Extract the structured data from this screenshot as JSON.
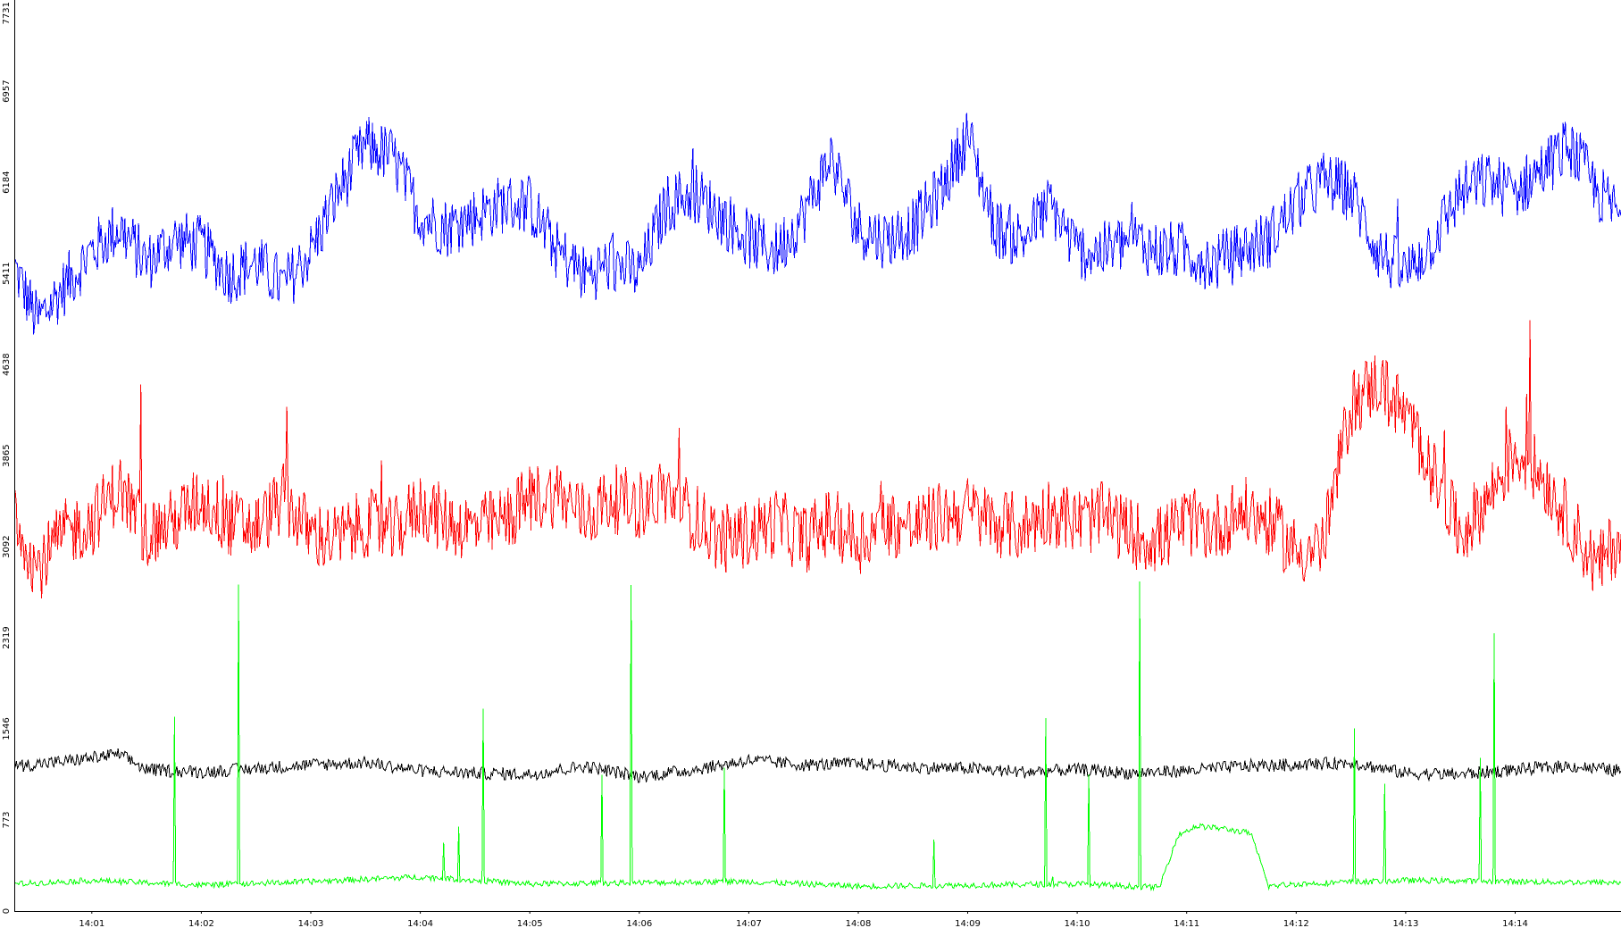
{
  "chart_data": {
    "type": "line",
    "title": "",
    "xlabel": "",
    "ylabel": "",
    "ylim": [
      0,
      7731
    ],
    "xlim": [
      "14:00:18",
      "14:14:58"
    ],
    "grid": false,
    "legend": "none",
    "y_ticks": [
      "0",
      "773",
      "1546",
      "2319",
      "3092",
      "3865",
      "4638",
      "5411",
      "6184",
      "6957",
      "7731"
    ],
    "x_ticks": [
      "14:01",
      "14:02",
      "14:03",
      "14:04",
      "14:05",
      "14:06",
      "14:07",
      "14:08",
      "14:09",
      "14:10",
      "14:11",
      "14:12",
      "14:13",
      "14:14"
    ],
    "series": [
      {
        "color": "#0000ff",
        "x": [
          "14:00:18",
          "14:00:30",
          "14:00:45",
          "14:01:00",
          "14:01:15",
          "14:01:30",
          "14:01:45",
          "14:02:00",
          "14:02:15",
          "14:02:30",
          "14:02:45",
          "14:03:00",
          "14:03:15",
          "14:03:30",
          "14:03:45",
          "14:04:00",
          "14:04:15",
          "14:04:30",
          "14:04:45",
          "14:05:00",
          "14:05:15",
          "14:05:30",
          "14:05:45",
          "14:06:00",
          "14:06:15",
          "14:06:30",
          "14:06:45",
          "14:07:00",
          "14:07:15",
          "14:07:30",
          "14:07:45",
          "14:08:00",
          "14:08:15",
          "14:08:30",
          "14:08:45",
          "14:09:00",
          "14:09:15",
          "14:09:30",
          "14:09:45",
          "14:10:00",
          "14:10:15",
          "14:10:30",
          "14:10:45",
          "14:11:00",
          "14:11:15",
          "14:11:30",
          "14:11:45",
          "14:12:00",
          "14:12:15",
          "14:12:30",
          "14:12:45",
          "14:13:00",
          "14:13:15",
          "14:13:30",
          "14:13:45",
          "14:14:00",
          "14:14:15",
          "14:14:30",
          "14:14:45",
          "14:14:58"
        ],
        "values": [
          5450,
          5000,
          5300,
          5600,
          5800,
          5500,
          5700,
          5650,
          5400,
          5500,
          5300,
          5600,
          6100,
          6500,
          6400,
          5900,
          5800,
          5900,
          6000,
          6000,
          5600,
          5400,
          5500,
          5400,
          6000,
          6100,
          5900,
          5700,
          5600,
          5900,
          6400,
          5800,
          5700,
          5800,
          6100,
          6600,
          5800,
          5700,
          6000,
          5600,
          5600,
          5700,
          5600,
          5600,
          5500,
          5600,
          5700,
          6000,
          6200,
          6100,
          5600,
          5400,
          5700,
          6100,
          6200,
          6100,
          6300,
          6500,
          6100,
          5900
        ]
      },
      {
        "color": "#ff0000",
        "x": [
          "14:00:18",
          "14:00:30",
          "14:00:45",
          "14:01:00",
          "14:01:15",
          "14:01:30",
          "14:01:45",
          "14:02:00",
          "14:02:15",
          "14:02:30",
          "14:02:45",
          "14:03:00",
          "14:03:15",
          "14:03:30",
          "14:03:45",
          "14:04:00",
          "14:04:15",
          "14:04:30",
          "14:04:45",
          "14:05:00",
          "14:05:15",
          "14:05:30",
          "14:05:45",
          "14:06:00",
          "14:06:15",
          "14:06:30",
          "14:06:45",
          "14:07:00",
          "14:07:15",
          "14:07:30",
          "14:07:45",
          "14:08:00",
          "14:08:15",
          "14:08:30",
          "14:08:45",
          "14:09:00",
          "14:09:15",
          "14:09:30",
          "14:09:45",
          "14:10:00",
          "14:10:15",
          "14:10:30",
          "14:10:45",
          "14:11:00",
          "14:11:15",
          "14:11:30",
          "14:11:45",
          "14:12:00",
          "14:12:15",
          "14:12:30",
          "14:12:45",
          "14:13:00",
          "14:13:15",
          "14:13:30",
          "14:13:45",
          "14:14:00",
          "14:14:15",
          "14:14:30",
          "14:14:45",
          "14:14:58"
        ],
        "values": [
          3400,
          2900,
          3200,
          3300,
          3600,
          3200,
          3300,
          3500,
          3300,
          3250,
          3500,
          3200,
          3150,
          3300,
          3200,
          3450,
          3300,
          3250,
          3300,
          3500,
          3550,
          3350,
          3500,
          3450,
          3550,
          3350,
          3150,
          3200,
          3300,
          3150,
          3300,
          3150,
          3300,
          3250,
          3350,
          3400,
          3300,
          3250,
          3400,
          3300,
          3350,
          3200,
          3150,
          3300,
          3250,
          3400,
          3300,
          3050,
          3100,
          4300,
          4500,
          4200,
          3700,
          3200,
          3500,
          3900,
          3700,
          3300,
          2900,
          3200
        ]
      },
      {
        "color": "#000000",
        "x": [
          "14:00:18",
          "14:00:45",
          "14:01:00",
          "14:01:15",
          "14:01:30",
          "14:02:00",
          "14:02:30",
          "14:03:00",
          "14:03:30",
          "14:04:00",
          "14:04:30",
          "14:05:00",
          "14:05:30",
          "14:06:00",
          "14:06:30",
          "14:07:00",
          "14:07:30",
          "14:08:00",
          "14:08:30",
          "14:09:00",
          "14:09:30",
          "14:10:00",
          "14:10:30",
          "14:11:00",
          "14:11:30",
          "14:12:00",
          "14:12:30",
          "14:13:00",
          "14:13:30",
          "14:14:00",
          "14:14:30",
          "14:14:58"
        ],
        "values": [
          1230,
          1270,
          1300,
          1330,
          1200,
          1180,
          1210,
          1240,
          1260,
          1190,
          1170,
          1160,
          1230,
          1140,
          1200,
          1280,
          1240,
          1250,
          1220,
          1210,
          1180,
          1200,
          1170,
          1190,
          1230,
          1240,
          1260,
          1170,
          1160,
          1200,
          1230,
          1190
        ]
      },
      {
        "color": "#00ff00",
        "x": [
          "14:00:18",
          "14:01:00",
          "14:02:00",
          "14:03:00",
          "14:04:00",
          "14:05:00",
          "14:06:00",
          "14:07:00",
          "14:08:00",
          "14:09:00",
          "14:10:00",
          "14:10:45",
          "14:10:55",
          "14:11:05",
          "14:11:20",
          "14:11:35",
          "14:11:45",
          "14:12:00",
          "14:13:00",
          "14:14:00",
          "14:14:58"
        ],
        "values": [
          230,
          260,
          220,
          250,
          290,
          230,
          240,
          250,
          210,
          220,
          230,
          200,
          640,
          720,
          700,
          660,
          210,
          230,
          260,
          250,
          240
        ]
      }
    ]
  }
}
